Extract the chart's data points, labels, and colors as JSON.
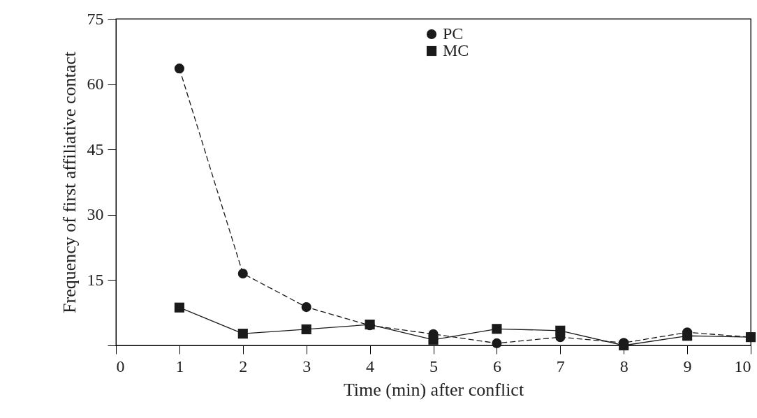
{
  "chart_data": {
    "type": "line",
    "xlabel": "Time (min) after conflict",
    "ylabel": "Frequency of first affiliative contact",
    "x": [
      1,
      2,
      3,
      4,
      5,
      6,
      7,
      8,
      9,
      10
    ],
    "series": [
      {
        "name": "PC",
        "color": "#1a1a1a",
        "marker": "circle",
        "line_style": "dashed",
        "values": [
          63.6,
          16.5,
          8.8,
          4.6,
          2.6,
          0.5,
          1.9,
          0.6,
          3,
          1.9
        ]
      },
      {
        "name": "MC",
        "color": "#1a1a1a",
        "marker": "square",
        "line_style": "solid",
        "values": [
          8.7,
          2.7,
          3.7,
          4.8,
          1.3,
          3.8,
          3.4,
          0,
          2.2,
          1.9
        ]
      }
    ],
    "xlim": [
      0,
      10
    ],
    "xticks": [
      0,
      1,
      2,
      3,
      4,
      5,
      6,
      7,
      8,
      9,
      10
    ],
    "ylim": [
      0,
      75
    ],
    "yticks": [
      {
        "value": 0,
        "label": null
      },
      15,
      30,
      45,
      60,
      75
    ],
    "grid": false,
    "legend": "top"
  }
}
